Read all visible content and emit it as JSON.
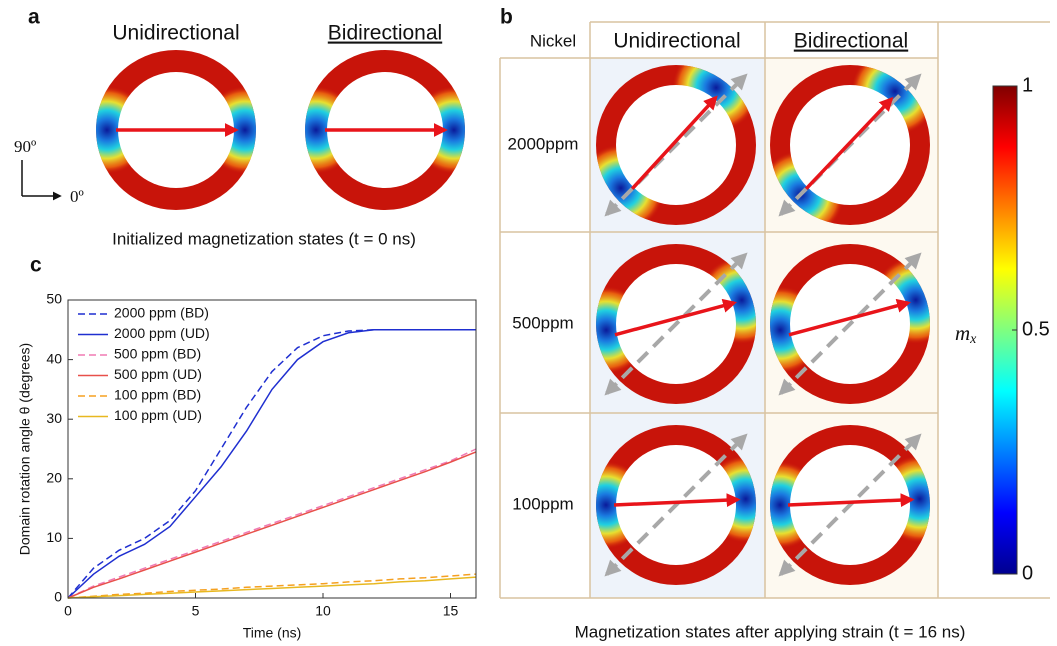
{
  "panel_a": {
    "label": "a",
    "columns": [
      "Unidirectional",
      "Bidirectional"
    ],
    "axis_labels": [
      "90º",
      "0º"
    ],
    "caption": "Initialized magnetization states (t = 0 ns)"
  },
  "panel_b": {
    "label": "b",
    "corner": "Nickel",
    "columns": [
      "Unidirectional",
      "Bidirectional"
    ],
    "rows": [
      "2000ppm",
      "500ppm",
      "100ppm"
    ],
    "caption": "Magnetization states after applying strain (t = 16 ns)",
    "colorbar": {
      "symbol": "m",
      "subscript": "x",
      "ticks": [
        0,
        0.5,
        1
      ]
    }
  },
  "chart_data": {
    "type": "line",
    "label": "c",
    "x_label": "Time (ns)",
    "y_label": "Domain rotation angle θ (degrees)",
    "x": [
      0,
      1,
      2,
      3,
      4,
      5,
      6,
      7,
      8,
      9,
      10,
      11,
      12,
      13,
      14,
      15,
      16
    ],
    "series": [
      {
        "name": "2000 ppm (BD)",
        "color": "#1f2fd0",
        "dash": true,
        "values": [
          0,
          5,
          8,
          10,
          13,
          18,
          25,
          32,
          38,
          42,
          44,
          44.8,
          45,
          45,
          45,
          45,
          45
        ]
      },
      {
        "name": "2000 ppm (UD)",
        "color": "#1f2fd0",
        "dash": false,
        "values": [
          0,
          4,
          7,
          9,
          12,
          17,
          22,
          28,
          35,
          40,
          43,
          44.5,
          45,
          45,
          45,
          45,
          45
        ]
      },
      {
        "name": "500 ppm (BD)",
        "color": "#f07ab4",
        "dash": true,
        "values": [
          0,
          2,
          3.5,
          5,
          6.5,
          8,
          9.5,
          11,
          12.5,
          14,
          15.5,
          17,
          18.5,
          20,
          21.5,
          23,
          25
        ]
      },
      {
        "name": "500 ppm (UD)",
        "color": "#e8504a",
        "dash": false,
        "values": [
          0,
          1.8,
          3.2,
          4.7,
          6.2,
          7.7,
          9.2,
          10.7,
          12.2,
          13.7,
          15.2,
          16.7,
          18.2,
          19.7,
          21.2,
          22.8,
          24.5
        ]
      },
      {
        "name": "100 ppm (BD)",
        "color": "#f5a020",
        "dash": true,
        "values": [
          0,
          0.3,
          0.6,
          0.8,
          1.1,
          1.3,
          1.5,
          1.8,
          2,
          2.2,
          2.4,
          2.7,
          2.9,
          3.2,
          3.4,
          3.7,
          4
        ]
      },
      {
        "name": "100 ppm (UD)",
        "color": "#e8b820",
        "dash": false,
        "values": [
          0,
          0.2,
          0.4,
          0.6,
          0.8,
          1,
          1.2,
          1.4,
          1.6,
          1.8,
          2,
          2.2,
          2.4,
          2.7,
          2.9,
          3.2,
          3.5
        ]
      }
    ],
    "xlim": [
      0,
      16
    ],
    "ylim": [
      0,
      50
    ],
    "xticks": [
      0,
      5,
      10,
      15
    ],
    "yticks": [
      0,
      10,
      20,
      30,
      40,
      50
    ],
    "legend": "upper left"
  }
}
